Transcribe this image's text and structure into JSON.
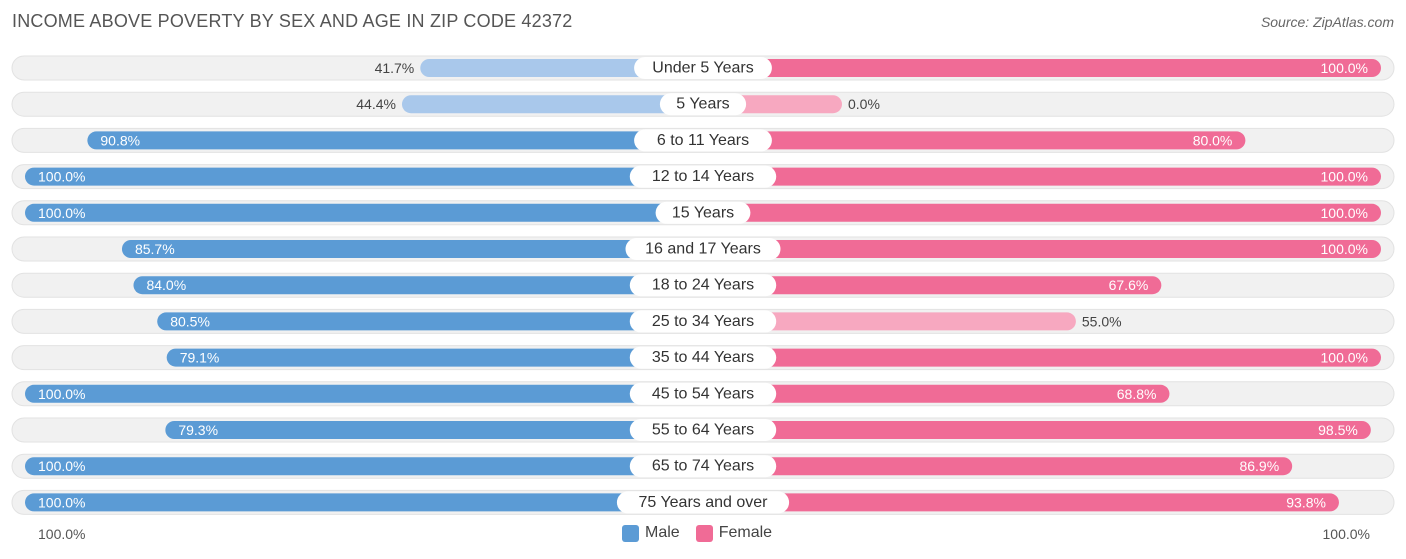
{
  "header": {
    "title": "INCOME ABOVE POVERTY BY SEX AND AGE IN ZIP CODE 42372",
    "source": "Source: ZipAtlas.com"
  },
  "axis": {
    "left_label": "100.0%",
    "right_label": "100.0%"
  },
  "legend": {
    "male_label": "Male",
    "female_label": "Female"
  },
  "colors": {
    "male": "#5b9bd5",
    "male_light": "#a9c8eb",
    "female": "#f06b96",
    "female_light": "#f7a8c0",
    "row_bg": "#f1f1f1"
  },
  "chart_data": {
    "type": "bar",
    "orientation": "horizontal-diverging",
    "title": "INCOME ABOVE POVERTY BY SEX AND AGE IN ZIP CODE 42372",
    "categories": [
      "Under 5 Years",
      "5 Years",
      "6 to 11 Years",
      "12 to 14 Years",
      "15 Years",
      "16 and 17 Years",
      "18 to 24 Years",
      "25 to 34 Years",
      "35 to 44 Years",
      "45 to 54 Years",
      "55 to 64 Years",
      "65 to 74 Years",
      "75 Years and over"
    ],
    "series": [
      {
        "name": "Male",
        "values": [
          41.7,
          44.4,
          90.8,
          100.0,
          100.0,
          85.7,
          84.0,
          80.5,
          79.1,
          100.0,
          79.3,
          100.0,
          100.0
        ],
        "labels": [
          "41.7%",
          "44.4%",
          "90.8%",
          "100.0%",
          "100.0%",
          "85.7%",
          "84.0%",
          "80.5%",
          "79.1%",
          "100.0%",
          "79.3%",
          "100.0%",
          "100.0%"
        ]
      },
      {
        "name": "Female",
        "values": [
          100.0,
          0.0,
          80.0,
          100.0,
          100.0,
          100.0,
          67.6,
          55.0,
          100.0,
          68.8,
          98.5,
          86.9,
          93.8
        ],
        "labels": [
          "100.0%",
          "0.0%",
          "80.0%",
          "100.0%",
          "100.0%",
          "100.0%",
          "67.6%",
          "55.0%",
          "100.0%",
          "68.8%",
          "98.5%",
          "86.9%",
          "93.8%"
        ]
      }
    ],
    "xlim": [
      0,
      100
    ],
    "legend_position": "bottom-center"
  }
}
